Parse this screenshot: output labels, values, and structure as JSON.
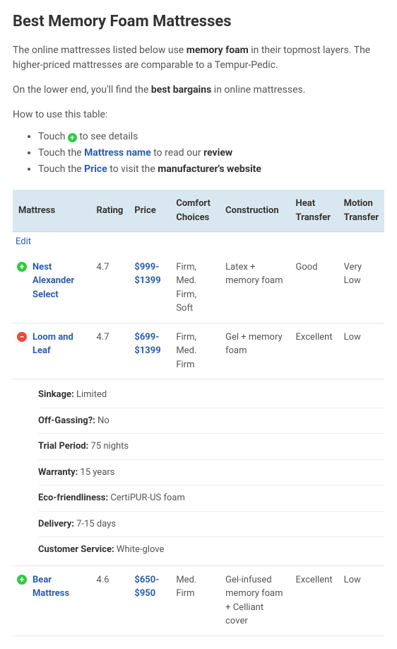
{
  "colors": {
    "heading": "#333333",
    "body_text": "#555555",
    "link": "#2a5db0",
    "thead_bg": "#d9e8f0",
    "row_border": "#e6e6e6",
    "expand_bg": "#2ecc40",
    "collapse_bg": "#e74c3c",
    "background": "#ffffff"
  },
  "heading": "Best Memory Foam Mattresses",
  "intro": {
    "p1_pre": "The online mattresses listed below use ",
    "p1_strong": "memory foam",
    "p1_post": " in their topmost layers. The higher-priced mattresses are comparable to a Tempur-Pedic.",
    "p2_pre": "On the lower end, you'll find the ",
    "p2_strong": "best bargains",
    "p2_post": " in online mattresses.",
    "howto": "How to use this table:"
  },
  "instructions": [
    {
      "pre": "Touch ",
      "post": " to see details"
    },
    {
      "pre": "Touch the ",
      "strong1": "Mattress name",
      "mid": " to read our ",
      "strong2": "review"
    },
    {
      "pre": "Touch the ",
      "strong1": "Price",
      "mid": " to visit the ",
      "strong2": "manufacturer's website"
    }
  ],
  "table": {
    "headers": [
      "Mattress",
      "Rating",
      "Price",
      "Comfort Choices",
      "Construction",
      "Heat Transfer",
      "Motion Transfer"
    ],
    "edit_label": "Edit",
    "rows": [
      {
        "expanded": false,
        "name": "Nest Alexander Select",
        "rating": "4.7",
        "price": "$999-$1399",
        "comfort": "Firm, Med. Firm, Soft",
        "construction": "Latex + memory foam",
        "heat": "Good",
        "motion": "Very Low"
      },
      {
        "expanded": true,
        "name": "Loom and Leaf",
        "rating": "4.7",
        "price": "$699-$1399",
        "comfort": "Firm, Med. Firm",
        "construction": "Gel + memory foam",
        "heat": "Excellent",
        "motion": "Low",
        "details": [
          {
            "label": "Sinkage:",
            "value": " Limited"
          },
          {
            "label": "Off-Gassing?:",
            "value": " No"
          },
          {
            "label": "Trial Period:",
            "value": " 75 nights"
          },
          {
            "label": "Warranty:",
            "value": " 15 years"
          },
          {
            "label": "Eco-friendliness:",
            "value": " CertiPUR-US foam"
          },
          {
            "label": "Delivery:",
            "value": " 7-15 days"
          },
          {
            "label": "Customer Service:",
            "value": " White-glove"
          }
        ]
      },
      {
        "expanded": false,
        "name": "Bear Mattress",
        "rating": "4.6",
        "price": "$650-$950",
        "comfort": "Med. Firm",
        "construction": "Gel-infused memory foam + Celliant cover",
        "heat": "Excellent",
        "motion": "Low"
      }
    ]
  }
}
